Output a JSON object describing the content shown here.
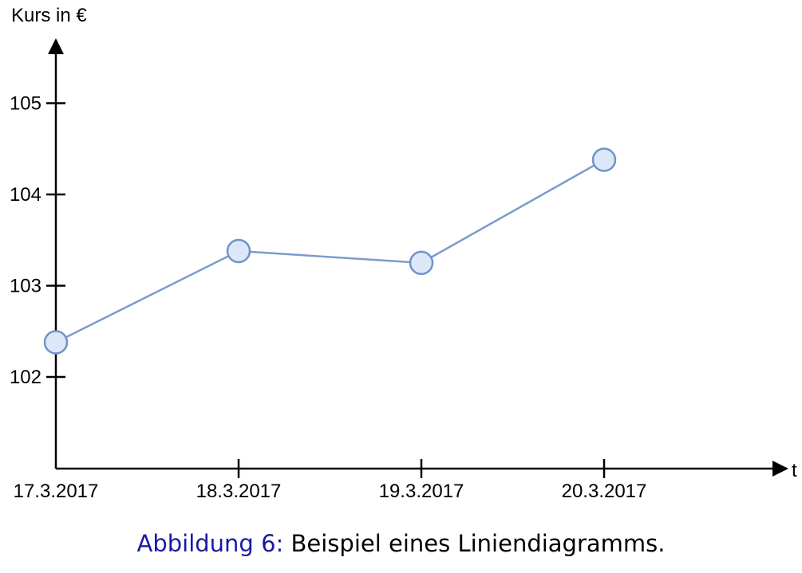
{
  "chart_data": {
    "type": "line",
    "ylabel": "Kurs in €",
    "xlabel": "t",
    "categories": [
      "17.3.2017",
      "18.3.2017",
      "19.3.2017",
      "20.3.2017"
    ],
    "series": [
      {
        "values": [
          102.38,
          103.38,
          103.25,
          104.38
        ]
      }
    ],
    "yticks": [
      102,
      103,
      104,
      105
    ],
    "ylim": [
      101,
      105.6
    ],
    "grid": false,
    "legend": "none",
    "colors": {
      "line": "#7b9bcc",
      "marker_fill": "#dce8f8",
      "marker_stroke": "#6f93c8",
      "axis": "#000000"
    }
  },
  "caption": {
    "label": "Abbildung 6",
    "separator": ":",
    "text": " Beispiel eines Liniendiagramms."
  }
}
